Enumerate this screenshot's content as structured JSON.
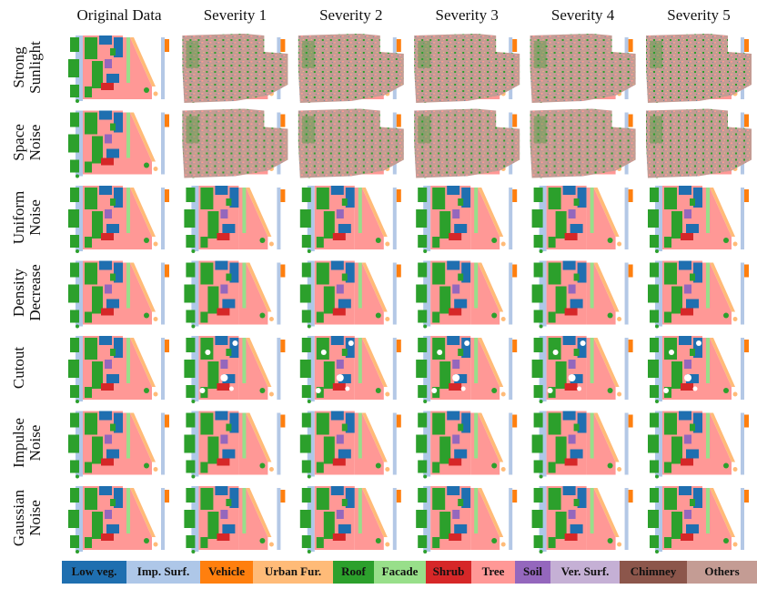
{
  "columns": [
    "Original Data",
    "Severity 1",
    "Severity 2",
    "Severity 3",
    "Severity 4",
    "Severity 5"
  ],
  "rows": [
    {
      "label": [
        "Strong",
        "Sunlight"
      ]
    },
    {
      "label": [
        "Space",
        "Noise"
      ]
    },
    {
      "label": [
        "Uniform",
        "Noise"
      ]
    },
    {
      "label": [
        "Density",
        "Decrease"
      ]
    },
    {
      "label": [
        "Cutout"
      ]
    },
    {
      "label": [
        "Impulse",
        "Noise"
      ]
    },
    {
      "label": [
        "Gaussian",
        "Noise"
      ]
    }
  ],
  "legend": [
    {
      "label": "Low veg.",
      "color": "#1f6fb0"
    },
    {
      "label": "Imp. Surf.",
      "color": "#aec7e8"
    },
    {
      "label": "Vehicle",
      "color": "#ff7f0e"
    },
    {
      "label": "Urban Fur.",
      "color": "#ffbb78"
    },
    {
      "label": "Roof",
      "color": "#2ca02c"
    },
    {
      "label": "Facade",
      "color": "#98df8a"
    },
    {
      "label": "Shrub",
      "color": "#d62728"
    },
    {
      "label": "Tree",
      "color": "#ff9896"
    },
    {
      "label": "Soil",
      "color": "#9467bd"
    },
    {
      "label": "Ver. Surf.",
      "color": "#c5b0d5"
    },
    {
      "label": "Chimney",
      "color": "#8c564b"
    },
    {
      "label": "Others",
      "color": "#c49c94"
    }
  ]
}
